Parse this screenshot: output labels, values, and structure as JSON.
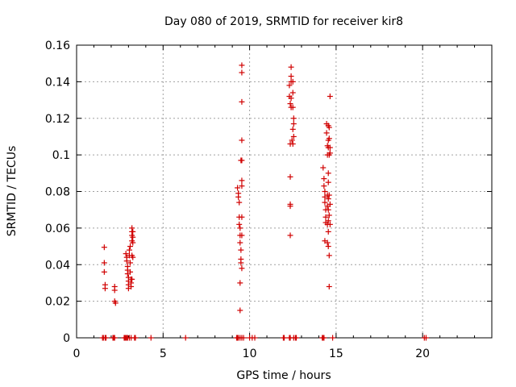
{
  "chart_data": {
    "type": "scatter",
    "title": "Day 080 of 2019, SRMTID for receiver kir8",
    "xlabel": "GPS time / hours",
    "ylabel": "SRMTID / TECUs",
    "xlim": [
      0,
      24
    ],
    "ylim": [
      0,
      0.16
    ],
    "xticks": [
      0,
      5,
      10,
      15,
      20
    ],
    "yticks": [
      0,
      0.02,
      0.04,
      0.06,
      0.08,
      0.1,
      0.12,
      0.14,
      0.16
    ],
    "xtick_labels": [
      "0",
      "5",
      "10",
      "15",
      "20"
    ],
    "ytick_labels": [
      "0",
      "0.02",
      "0.04",
      "0.06",
      "0.08",
      "0.1",
      "0.12",
      "0.14",
      "0.16"
    ],
    "grid": true,
    "marker": "+",
    "color": "#d00000",
    "series": [
      {
        "name": "kir8",
        "points": [
          [
            1.6,
            0.0495
          ],
          [
            1.6,
            0.041
          ],
          [
            1.6,
            0.036
          ],
          [
            1.65,
            0.029
          ],
          [
            1.65,
            0.027
          ],
          [
            2.2,
            0.028
          ],
          [
            2.2,
            0.026
          ],
          [
            2.2,
            0.02
          ],
          [
            2.25,
            0.019
          ],
          [
            2.85,
            0.046
          ],
          [
            2.9,
            0.044
          ],
          [
            2.9,
            0.042
          ],
          [
            2.95,
            0.039
          ],
          [
            2.95,
            0.037
          ],
          [
            2.95,
            0.035
          ],
          [
            3.0,
            0.033
          ],
          [
            3.0,
            0.031
          ],
          [
            3.0,
            0.029
          ],
          [
            3.0,
            0.027
          ],
          [
            3.05,
            0.048
          ],
          [
            3.05,
            0.045
          ],
          [
            3.1,
            0.05
          ],
          [
            3.1,
            0.041
          ],
          [
            3.1,
            0.036
          ],
          [
            3.15,
            0.032
          ],
          [
            3.15,
            0.03
          ],
          [
            3.15,
            0.028
          ],
          [
            3.2,
            0.06
          ],
          [
            3.2,
            0.058
          ],
          [
            3.2,
            0.056
          ],
          [
            3.2,
            0.053
          ],
          [
            3.2,
            0.045
          ],
          [
            3.2,
            0.032
          ],
          [
            3.25,
            0.058
          ],
          [
            3.25,
            0.055
          ],
          [
            3.25,
            0.052
          ],
          [
            3.25,
            0.044
          ],
          [
            9.3,
            0.082
          ],
          [
            9.35,
            0.079
          ],
          [
            9.35,
            0.077
          ],
          [
            9.4,
            0.074
          ],
          [
            9.4,
            0.066
          ],
          [
            9.4,
            0.062
          ],
          [
            9.45,
            0.06
          ],
          [
            9.45,
            0.056
          ],
          [
            9.45,
            0.052
          ],
          [
            9.5,
            0.048
          ],
          [
            9.5,
            0.043
          ],
          [
            9.5,
            0.041
          ],
          [
            9.45,
            0.03
          ],
          [
            9.45,
            0.015
          ],
          [
            9.5,
            0.097
          ],
          [
            9.55,
            0.097
          ],
          [
            9.55,
            0.086
          ],
          [
            9.55,
            0.083
          ],
          [
            9.55,
            0.066
          ],
          [
            9.55,
            0.056
          ],
          [
            9.55,
            0.038
          ],
          [
            9.55,
            0.108
          ],
          [
            9.55,
            0.129
          ],
          [
            9.55,
            0.145
          ],
          [
            9.55,
            0.149
          ],
          [
            12.3,
            0.138
          ],
          [
            12.3,
            0.132
          ],
          [
            12.35,
            0.128
          ],
          [
            12.35,
            0.106
          ],
          [
            12.35,
            0.088
          ],
          [
            12.35,
            0.073
          ],
          [
            12.35,
            0.072
          ],
          [
            12.35,
            0.056
          ],
          [
            12.4,
            0.148
          ],
          [
            12.4,
            0.143
          ],
          [
            12.4,
            0.14
          ],
          [
            12.4,
            0.131
          ],
          [
            12.4,
            0.126
          ],
          [
            12.45,
            0.108
          ],
          [
            12.5,
            0.14
          ],
          [
            12.5,
            0.134
          ],
          [
            12.5,
            0.126
          ],
          [
            12.55,
            0.12
          ],
          [
            12.55,
            0.117
          ],
          [
            12.5,
            0.114
          ],
          [
            12.55,
            0.11
          ],
          [
            12.5,
            0.106
          ],
          [
            14.25,
            0.093
          ],
          [
            14.3,
            0.087
          ],
          [
            14.3,
            0.083
          ],
          [
            14.35,
            0.08
          ],
          [
            14.35,
            0.077
          ],
          [
            14.35,
            0.074
          ],
          [
            14.4,
            0.07
          ],
          [
            14.4,
            0.066
          ],
          [
            14.4,
            0.063
          ],
          [
            14.35,
            0.053
          ],
          [
            14.45,
            0.117
          ],
          [
            14.45,
            0.112
          ],
          [
            14.5,
            0.105
          ],
          [
            14.5,
            0.1
          ],
          [
            14.5,
            0.078
          ],
          [
            14.5,
            0.072
          ],
          [
            14.5,
            0.062
          ],
          [
            14.5,
            0.052
          ],
          [
            14.55,
            0.116
          ],
          [
            14.55,
            0.108
          ],
          [
            14.55,
            0.104
          ],
          [
            14.55,
            0.09
          ],
          [
            14.55,
            0.085
          ],
          [
            14.55,
            0.076
          ],
          [
            14.55,
            0.07
          ],
          [
            14.55,
            0.064
          ],
          [
            14.55,
            0.058
          ],
          [
            14.55,
            0.05
          ],
          [
            14.6,
            0.115
          ],
          [
            14.6,
            0.109
          ],
          [
            14.6,
            0.1
          ],
          [
            14.6,
            0.078
          ],
          [
            14.6,
            0.067
          ],
          [
            14.6,
            0.045
          ],
          [
            14.6,
            0.028
          ],
          [
            14.65,
            0.132
          ],
          [
            14.65,
            0.104
          ],
          [
            14.65,
            0.101
          ],
          [
            14.65,
            0.073
          ],
          [
            14.65,
            0.062
          ]
        ],
        "zero_x": [
          1.5,
          1.55,
          1.65,
          1.7,
          2.1,
          2.15,
          2.2,
          2.75,
          2.8,
          2.85,
          2.9,
          2.95,
          3.05,
          3.15,
          3.35,
          3.4,
          4.3,
          6.3,
          9.25,
          9.3,
          9.35,
          9.45,
          9.55,
          9.65,
          10.0,
          10.15,
          10.3,
          11.95,
          12.0,
          12.3,
          12.35,
          12.55,
          12.65,
          12.7,
          14.2,
          14.25,
          14.3,
          14.8,
          20.1,
          20.2
        ]
      }
    ]
  }
}
